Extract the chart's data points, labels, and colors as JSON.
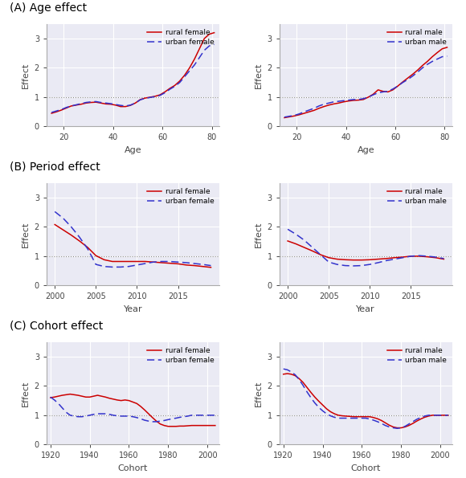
{
  "age_x": [
    15,
    17,
    19,
    21,
    23,
    25,
    27,
    29,
    31,
    33,
    35,
    37,
    39,
    41,
    43,
    45,
    47,
    49,
    51,
    53,
    55,
    57,
    59,
    61,
    63,
    65,
    67,
    69,
    71,
    73,
    75,
    77,
    79,
    81
  ],
  "age_female_rural": [
    0.45,
    0.5,
    0.56,
    0.63,
    0.7,
    0.73,
    0.76,
    0.8,
    0.82,
    0.83,
    0.8,
    0.77,
    0.76,
    0.73,
    0.68,
    0.68,
    0.72,
    0.8,
    0.92,
    0.97,
    1.0,
    1.03,
    1.08,
    1.18,
    1.3,
    1.4,
    1.55,
    1.75,
    2.0,
    2.3,
    2.65,
    3.0,
    3.15,
    3.2
  ],
  "age_female_urban": [
    0.48,
    0.53,
    0.58,
    0.65,
    0.7,
    0.74,
    0.78,
    0.82,
    0.84,
    0.85,
    0.82,
    0.8,
    0.78,
    0.75,
    0.72,
    0.7,
    0.73,
    0.8,
    0.91,
    0.96,
    0.99,
    1.02,
    1.06,
    1.15,
    1.27,
    1.37,
    1.5,
    1.7,
    1.9,
    2.1,
    2.35,
    2.6,
    2.75,
    2.8
  ],
  "age_male_rural": [
    0.3,
    0.33,
    0.36,
    0.4,
    0.45,
    0.5,
    0.55,
    0.62,
    0.68,
    0.73,
    0.77,
    0.8,
    0.84,
    0.87,
    0.89,
    0.9,
    0.92,
    1.0,
    1.1,
    1.25,
    1.2,
    1.18,
    1.25,
    1.38,
    1.52,
    1.65,
    1.78,
    1.92,
    2.08,
    2.22,
    2.38,
    2.52,
    2.65,
    2.7
  ],
  "age_male_urban": [
    0.32,
    0.35,
    0.38,
    0.43,
    0.5,
    0.56,
    0.62,
    0.7,
    0.76,
    0.8,
    0.84,
    0.86,
    0.88,
    0.9,
    0.92,
    0.92,
    0.95,
    1.0,
    1.08,
    1.15,
    1.18,
    1.2,
    1.28,
    1.38,
    1.5,
    1.6,
    1.72,
    1.85,
    2.0,
    2.12,
    2.22,
    2.3,
    2.38,
    2.4
  ],
  "period_x": [
    2000,
    2001,
    2002,
    2003,
    2004,
    2005,
    2006,
    2007,
    2008,
    2009,
    2010,
    2011,
    2012,
    2013,
    2014,
    2015,
    2016,
    2017,
    2018,
    2019
  ],
  "period_female_rural": [
    2.08,
    1.9,
    1.72,
    1.52,
    1.3,
    1.02,
    0.88,
    0.82,
    0.82,
    0.82,
    0.82,
    0.82,
    0.8,
    0.78,
    0.76,
    0.74,
    0.7,
    0.68,
    0.65,
    0.62
  ],
  "period_female_urban": [
    2.52,
    2.3,
    2.0,
    1.65,
    1.25,
    0.72,
    0.65,
    0.63,
    0.63,
    0.65,
    0.7,
    0.75,
    0.8,
    0.82,
    0.82,
    0.8,
    0.78,
    0.75,
    0.72,
    0.68
  ],
  "period_male_rural": [
    1.52,
    1.42,
    1.3,
    1.18,
    1.05,
    0.95,
    0.9,
    0.88,
    0.87,
    0.87,
    0.88,
    0.9,
    0.92,
    0.95,
    0.97,
    1.0,
    1.0,
    0.98,
    0.95,
    0.9
  ],
  "period_male_urban": [
    1.92,
    1.75,
    1.55,
    1.3,
    1.05,
    0.8,
    0.72,
    0.68,
    0.67,
    0.68,
    0.72,
    0.78,
    0.85,
    0.9,
    0.95,
    1.0,
    1.02,
    1.0,
    0.97,
    0.92
  ],
  "cohort_x": [
    1920,
    1922,
    1924,
    1926,
    1928,
    1930,
    1932,
    1934,
    1936,
    1938,
    1940,
    1942,
    1944,
    1946,
    1948,
    1950,
    1952,
    1954,
    1956,
    1958,
    1960,
    1962,
    1964,
    1966,
    1968,
    1970,
    1972,
    1974,
    1976,
    1978,
    1980,
    1982,
    1984,
    1986,
    1988,
    1990,
    1992,
    1994,
    1996,
    1998,
    2000,
    2002,
    2004
  ],
  "cohort_female_rural": [
    1.6,
    1.62,
    1.65,
    1.68,
    1.7,
    1.72,
    1.7,
    1.68,
    1.65,
    1.62,
    1.62,
    1.65,
    1.68,
    1.65,
    1.62,
    1.58,
    1.55,
    1.52,
    1.5,
    1.52,
    1.5,
    1.45,
    1.4,
    1.3,
    1.18,
    1.05,
    0.92,
    0.8,
    0.7,
    0.65,
    0.62,
    0.62,
    0.62,
    0.63,
    0.63,
    0.64,
    0.65,
    0.65,
    0.65,
    0.65,
    0.65,
    0.65,
    0.65
  ],
  "cohort_female_urban": [
    1.62,
    1.52,
    1.4,
    1.25,
    1.1,
    1.0,
    0.97,
    0.95,
    0.95,
    0.97,
    1.0,
    1.03,
    1.05,
    1.05,
    1.05,
    1.03,
    1.0,
    0.98,
    0.97,
    0.97,
    0.97,
    0.95,
    0.92,
    0.88,
    0.83,
    0.8,
    0.78,
    0.78,
    0.8,
    0.82,
    0.85,
    0.88,
    0.9,
    0.93,
    0.95,
    0.97,
    1.0,
    1.0,
    1.0,
    1.0,
    1.0,
    1.0,
    1.0
  ],
  "cohort_male_rural": [
    2.4,
    2.42,
    2.4,
    2.35,
    2.25,
    2.12,
    1.95,
    1.78,
    1.62,
    1.48,
    1.35,
    1.22,
    1.12,
    1.05,
    1.0,
    0.98,
    0.97,
    0.96,
    0.95,
    0.95,
    0.95,
    0.95,
    0.95,
    0.92,
    0.88,
    0.82,
    0.74,
    0.66,
    0.6,
    0.57,
    0.57,
    0.6,
    0.65,
    0.72,
    0.8,
    0.87,
    0.93,
    0.97,
    1.0,
    1.0,
    1.0,
    1.0,
    1.0
  ],
  "cohort_male_urban": [
    2.58,
    2.55,
    2.48,
    2.38,
    2.22,
    2.02,
    1.8,
    1.6,
    1.42,
    1.27,
    1.15,
    1.05,
    0.98,
    0.93,
    0.9,
    0.9,
    0.9,
    0.9,
    0.9,
    0.9,
    0.9,
    0.9,
    0.87,
    0.83,
    0.78,
    0.72,
    0.65,
    0.6,
    0.57,
    0.55,
    0.57,
    0.62,
    0.7,
    0.78,
    0.86,
    0.92,
    0.97,
    1.0,
    1.0,
    1.0,
    1.0,
    1.0,
    1.0
  ],
  "rural_color": "#cc0000",
  "urban_color": "#3333cc",
  "bg_color": "#eaeaf4",
  "grid_color": "#ffffff",
  "dotted_line_color": "#888888",
  "title_A": "(A) Age effect",
  "title_B": "(B) Period effect",
  "title_C": "(C) Cohort effect",
  "xlabel_age": "Age",
  "xlabel_period": "Year",
  "xlabel_cohort": "Cohort",
  "ylabel": "Effect",
  "legend_rural_female": "rural female",
  "legend_urban_female": "urban female",
  "legend_rural_male": "rural male",
  "legend_urban_male": "urban male",
  "ylim": [
    0,
    3.5
  ],
  "yticks": [
    0,
    1,
    2,
    3
  ]
}
